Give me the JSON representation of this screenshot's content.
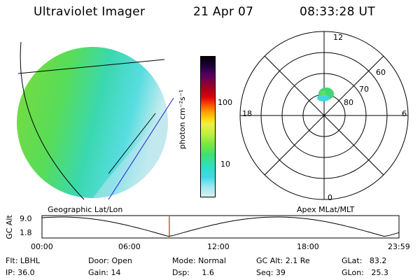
{
  "header": {
    "title": "Ultraviolet Imager",
    "date": "21 Apr 07",
    "time": "08:33:28 UT"
  },
  "colorbar": {
    "unit_label": "photon cm⁻²s⁻¹",
    "ticks": [
      "100",
      "10"
    ],
    "colors": [
      "#000000",
      "#1a0033",
      "#4a0060",
      "#800040",
      "#b00018",
      "#e00010",
      "#ff4800",
      "#ff9a00",
      "#ffd400",
      "#f0f040",
      "#c0f040",
      "#80e840",
      "#40e070",
      "#30e0c0",
      "#40d8e8",
      "#a0e8f0",
      "#d8f0f0"
    ]
  },
  "polar_plot": {
    "mlt_labels": {
      "top": "12",
      "left": "18",
      "right": "6",
      "bottom": "0"
    },
    "lat_labels": [
      "60",
      "70",
      "80"
    ]
  },
  "timeline": {
    "y_label": "GC Alt",
    "y_ticks": [
      "9.0",
      "1.8"
    ],
    "left_title": "Geographic Lat/Lon",
    "right_title": "Apex MLat/MLT",
    "x_ticks": [
      "00:00",
      "06:00",
      "12:00",
      "18:00",
      "23:59"
    ],
    "marker_hour": 8.56
  },
  "info": {
    "col1": [
      "Flt: LBHL",
      "IP: 36.0"
    ],
    "col2": [
      "Door: Open",
      "Gain: 14"
    ],
    "col3": [
      "Mode: Normal",
      "Dsp:     1.6"
    ],
    "col4": [
      "GC Alt: 2.1 Re",
      "Seq: 39"
    ],
    "col5": [
      "GLat:   83.2",
      "GLon:   25.3"
    ]
  }
}
